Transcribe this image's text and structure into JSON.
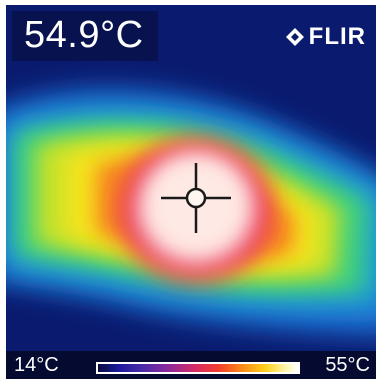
{
  "readout": {
    "spot_temperature": "54.9°C"
  },
  "brand": {
    "name": "FLIR",
    "logo_icon": "flir-diamond-icon"
  },
  "scale": {
    "min_label": "14°C",
    "max_label": "55°C"
  },
  "crosshair": {
    "icon": "spot-meter-crosshair-icon"
  },
  "colors": {
    "background": "#0a1a6e",
    "cool": "#1f6ed8",
    "mid": "#22c9a8",
    "warm": "#f5e41c",
    "hot": "#e8234f",
    "peak": "#fff0e6"
  }
}
